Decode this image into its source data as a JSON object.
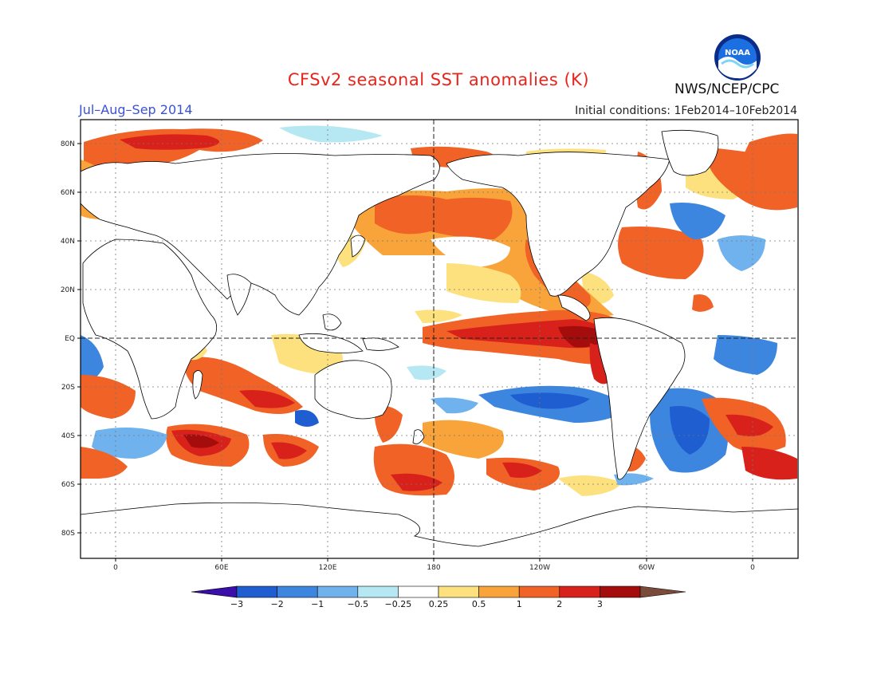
{
  "title": "CFSv2 seasonal SST anomalies (K)",
  "season": "Jul–Aug–Sep 2014",
  "initial_conditions": "Initial conditions: 1Feb2014–10Feb2014",
  "agency": "NWS/NCEP/CPC",
  "logo_text": "NOAA",
  "lat_labels": [
    "80N",
    "60N",
    "40N",
    "20N",
    "EQ",
    "20S",
    "40S",
    "60S",
    "80S"
  ],
  "lon_labels": [
    "0",
    "60E",
    "120E",
    "180",
    "120W",
    "60W",
    "0"
  ],
  "colorbar": {
    "tick_labels": [
      "−3",
      "−2",
      "−1",
      "−0.5",
      "−0.25",
      "0.25",
      "0.5",
      "1",
      "2",
      "3"
    ],
    "colors": [
      "#3a0ea8",
      "#1f5ed0",
      "#3c86e0",
      "#6fb2ee",
      "#b5e8f2",
      "#ffffff",
      "#fde17f",
      "#f8a43a",
      "#f06226",
      "#d9211b",
      "#a50d0d",
      "#7a4a3a"
    ]
  },
  "colors": {
    "title": "#e8241c",
    "season": "#3a52d8",
    "land_outline": "#000000",
    "gridline": "#777777"
  }
}
